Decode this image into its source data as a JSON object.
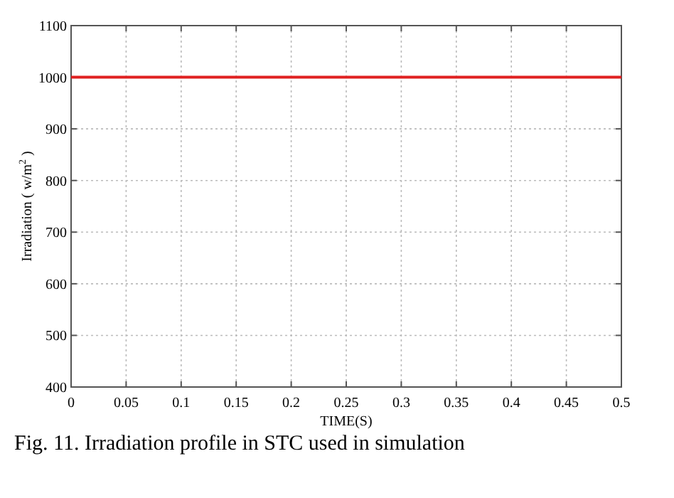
{
  "chart_data": {
    "type": "line",
    "xlabel": "TIME(S)",
    "ylabel": "Irradiation ( w/m$^{2}$ )",
    "annotations": [
      "Fig. 11.  Irradiation profile in STC used in simulation"
    ],
    "x": [
      0,
      0.5
    ],
    "series": [
      {
        "color": "#e02020",
        "values": [
          1000,
          1000
        ]
      }
    ],
    "xlim": [
      0,
      0.5
    ],
    "xticks": [
      0,
      0.05,
      0.1,
      0.15,
      0.2,
      0.25,
      0.3,
      0.35,
      0.4,
      0.45,
      0.5
    ],
    "ylim": [
      400,
      1100
    ],
    "yticks": [
      400,
      500,
      600,
      700,
      800,
      900,
      1000,
      1100
    ],
    "grid": true,
    "line_style": "solid",
    "marker": "none"
  }
}
